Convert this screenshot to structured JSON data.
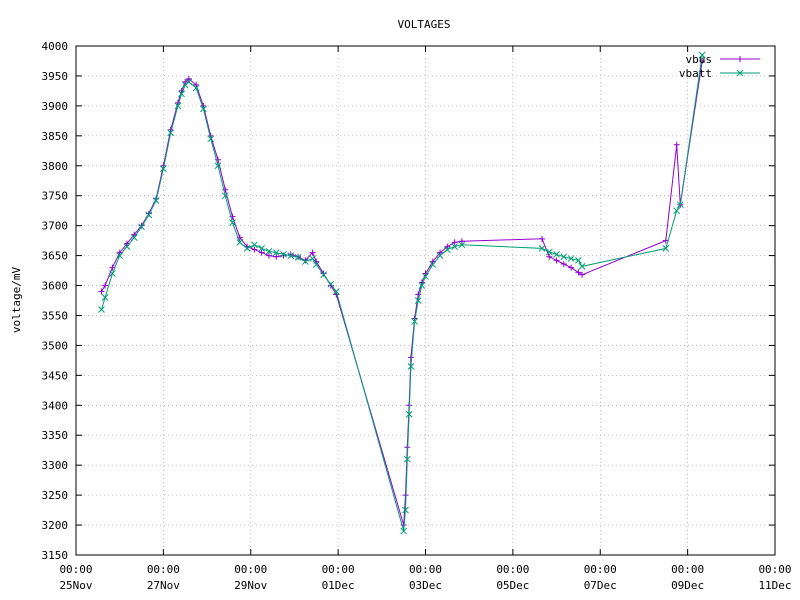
{
  "chart_data": {
    "type": "line",
    "title": "VOLTAGES",
    "xlabel": "",
    "ylabel": "voltage/mV",
    "ylim": [
      3150,
      4000
    ],
    "y_ticks": [
      3150,
      3200,
      3250,
      3300,
      3350,
      3400,
      3450,
      3500,
      3550,
      3600,
      3650,
      3700,
      3750,
      3800,
      3850,
      3900,
      3950,
      4000
    ],
    "x_range": [
      "2023-11-25T00:00",
      "2023-12-11T00:00"
    ],
    "x_ticks": [
      {
        "value": "2023-11-25T00:00",
        "time": "00:00",
        "date": "25Nov"
      },
      {
        "value": "2023-11-27T00:00",
        "time": "00:00",
        "date": "27Nov"
      },
      {
        "value": "2023-11-29T00:00",
        "time": "00:00",
        "date": "29Nov"
      },
      {
        "value": "2023-12-01T00:00",
        "time": "00:00",
        "date": "01Dec"
      },
      {
        "value": "2023-12-03T00:00",
        "time": "00:00",
        "date": "03Dec"
      },
      {
        "value": "2023-12-05T00:00",
        "time": "00:00",
        "date": "05Dec"
      },
      {
        "value": "2023-12-07T00:00",
        "time": "00:00",
        "date": "07Dec"
      },
      {
        "value": "2023-12-09T00:00",
        "time": "00:00",
        "date": "09Dec"
      },
      {
        "value": "2023-12-11T00:00",
        "time": "00:00",
        "date": "11Dec"
      }
    ],
    "grid": true,
    "legend_position": "top-right",
    "series": [
      {
        "name": "vbus",
        "color": "#9400d3",
        "marker": "plus",
        "x": [
          "2023-11-25T14:00",
          "2023-11-25T16:00",
          "2023-11-25T20:00",
          "2023-11-26T00:00",
          "2023-11-26T04:00",
          "2023-11-26T08:00",
          "2023-11-26T12:00",
          "2023-11-26T16:00",
          "2023-11-26T20:00",
          "2023-11-27T00:00",
          "2023-11-27T04:00",
          "2023-11-27T08:00",
          "2023-11-27T10:00",
          "2023-11-27T12:00",
          "2023-11-27T14:00",
          "2023-11-27T18:00",
          "2023-11-27T22:00",
          "2023-11-28T02:00",
          "2023-11-28T06:00",
          "2023-11-28T10:00",
          "2023-11-28T14:00",
          "2023-11-28T18:00",
          "2023-11-28T22:00",
          "2023-11-29T02:00",
          "2023-11-29T06:00",
          "2023-11-29T10:00",
          "2023-11-29T14:00",
          "2023-11-29T18:00",
          "2023-11-29T22:00",
          "2023-11-30T02:00",
          "2023-11-30T06:00",
          "2023-11-30T10:00",
          "2023-11-30T12:00",
          "2023-11-30T16:00",
          "2023-11-30T20:00",
          "2023-11-30T23:00",
          "2023-12-02T12:00",
          "2023-12-02T13:00",
          "2023-12-02T14:00",
          "2023-12-02T15:00",
          "2023-12-02T16:00",
          "2023-12-02T18:00",
          "2023-12-02T20:00",
          "2023-12-02T22:00",
          "2023-12-03T00:00",
          "2023-12-03T04:00",
          "2023-12-03T08:00",
          "2023-12-03T12:00",
          "2023-12-03T16:00",
          "2023-12-03T20:00",
          "2023-12-05T16:00",
          "2023-12-05T20:00",
          "2023-12-06T00:00",
          "2023-12-06T04:00",
          "2023-12-06T08:00",
          "2023-12-06T12:00",
          "2023-12-06T14:00",
          "2023-12-08T12:00",
          "2023-12-08T18:00",
          "2023-12-08T20:00",
          "2023-12-09T08:00"
        ],
        "y": [
          3590,
          3600,
          3630,
          3655,
          3670,
          3685,
          3700,
          3720,
          3745,
          3800,
          3860,
          3905,
          3925,
          3940,
          3945,
          3935,
          3900,
          3850,
          3810,
          3760,
          3715,
          3680,
          3665,
          3660,
          3655,
          3650,
          3648,
          3650,
          3652,
          3648,
          3642,
          3655,
          3640,
          3620,
          3600,
          3585,
          3200,
          3250,
          3330,
          3400,
          3480,
          3545,
          3585,
          3605,
          3620,
          3640,
          3655,
          3665,
          3672,
          3674,
          3678,
          3648,
          3642,
          3636,
          3630,
          3622,
          3618,
          3675,
          3835,
          3735,
          3975
        ]
      },
      {
        "name": "vbatt",
        "color": "#009e73",
        "marker": "cross",
        "x": [
          "2023-11-25T14:00",
          "2023-11-25T16:00",
          "2023-11-25T20:00",
          "2023-11-26T00:00",
          "2023-11-26T04:00",
          "2023-11-26T08:00",
          "2023-11-26T12:00",
          "2023-11-26T16:00",
          "2023-11-26T20:00",
          "2023-11-27T00:00",
          "2023-11-27T04:00",
          "2023-11-27T08:00",
          "2023-11-27T10:00",
          "2023-11-27T12:00",
          "2023-11-27T14:00",
          "2023-11-27T18:00",
          "2023-11-27T22:00",
          "2023-11-28T02:00",
          "2023-11-28T06:00",
          "2023-11-28T10:00",
          "2023-11-28T14:00",
          "2023-11-28T18:00",
          "2023-11-28T22:00",
          "2023-11-29T02:00",
          "2023-11-29T06:00",
          "2023-11-29T10:00",
          "2023-11-29T14:00",
          "2023-11-29T18:00",
          "2023-11-29T22:00",
          "2023-11-30T02:00",
          "2023-11-30T06:00",
          "2023-11-30T10:00",
          "2023-11-30T12:00",
          "2023-11-30T16:00",
          "2023-11-30T20:00",
          "2023-11-30T23:00",
          "2023-12-02T12:00",
          "2023-12-02T13:00",
          "2023-12-02T14:00",
          "2023-12-02T15:00",
          "2023-12-02T16:00",
          "2023-12-02T18:00",
          "2023-12-02T20:00",
          "2023-12-02T22:00",
          "2023-12-03T00:00",
          "2023-12-03T04:00",
          "2023-12-03T08:00",
          "2023-12-03T12:00",
          "2023-12-03T16:00",
          "2023-12-03T20:00",
          "2023-12-05T16:00",
          "2023-12-05T20:00",
          "2023-12-06T00:00",
          "2023-12-06T04:00",
          "2023-12-06T08:00",
          "2023-12-06T12:00",
          "2023-12-06T14:00",
          "2023-12-08T12:00",
          "2023-12-08T18:00",
          "2023-12-08T20:00",
          "2023-12-09T08:00"
        ],
        "y": [
          3560,
          3580,
          3620,
          3650,
          3665,
          3680,
          3698,
          3718,
          3742,
          3795,
          3855,
          3900,
          3920,
          3935,
          3940,
          3930,
          3895,
          3845,
          3800,
          3750,
          3705,
          3672,
          3662,
          3668,
          3662,
          3657,
          3655,
          3652,
          3650,
          3647,
          3640,
          3645,
          3635,
          3618,
          3602,
          3590,
          3190,
          3225,
          3310,
          3385,
          3465,
          3540,
          3575,
          3600,
          3615,
          3635,
          3650,
          3660,
          3665,
          3668,
          3662,
          3656,
          3652,
          3648,
          3645,
          3642,
          3632,
          3662,
          3725,
          3735,
          3985
        ]
      }
    ]
  }
}
